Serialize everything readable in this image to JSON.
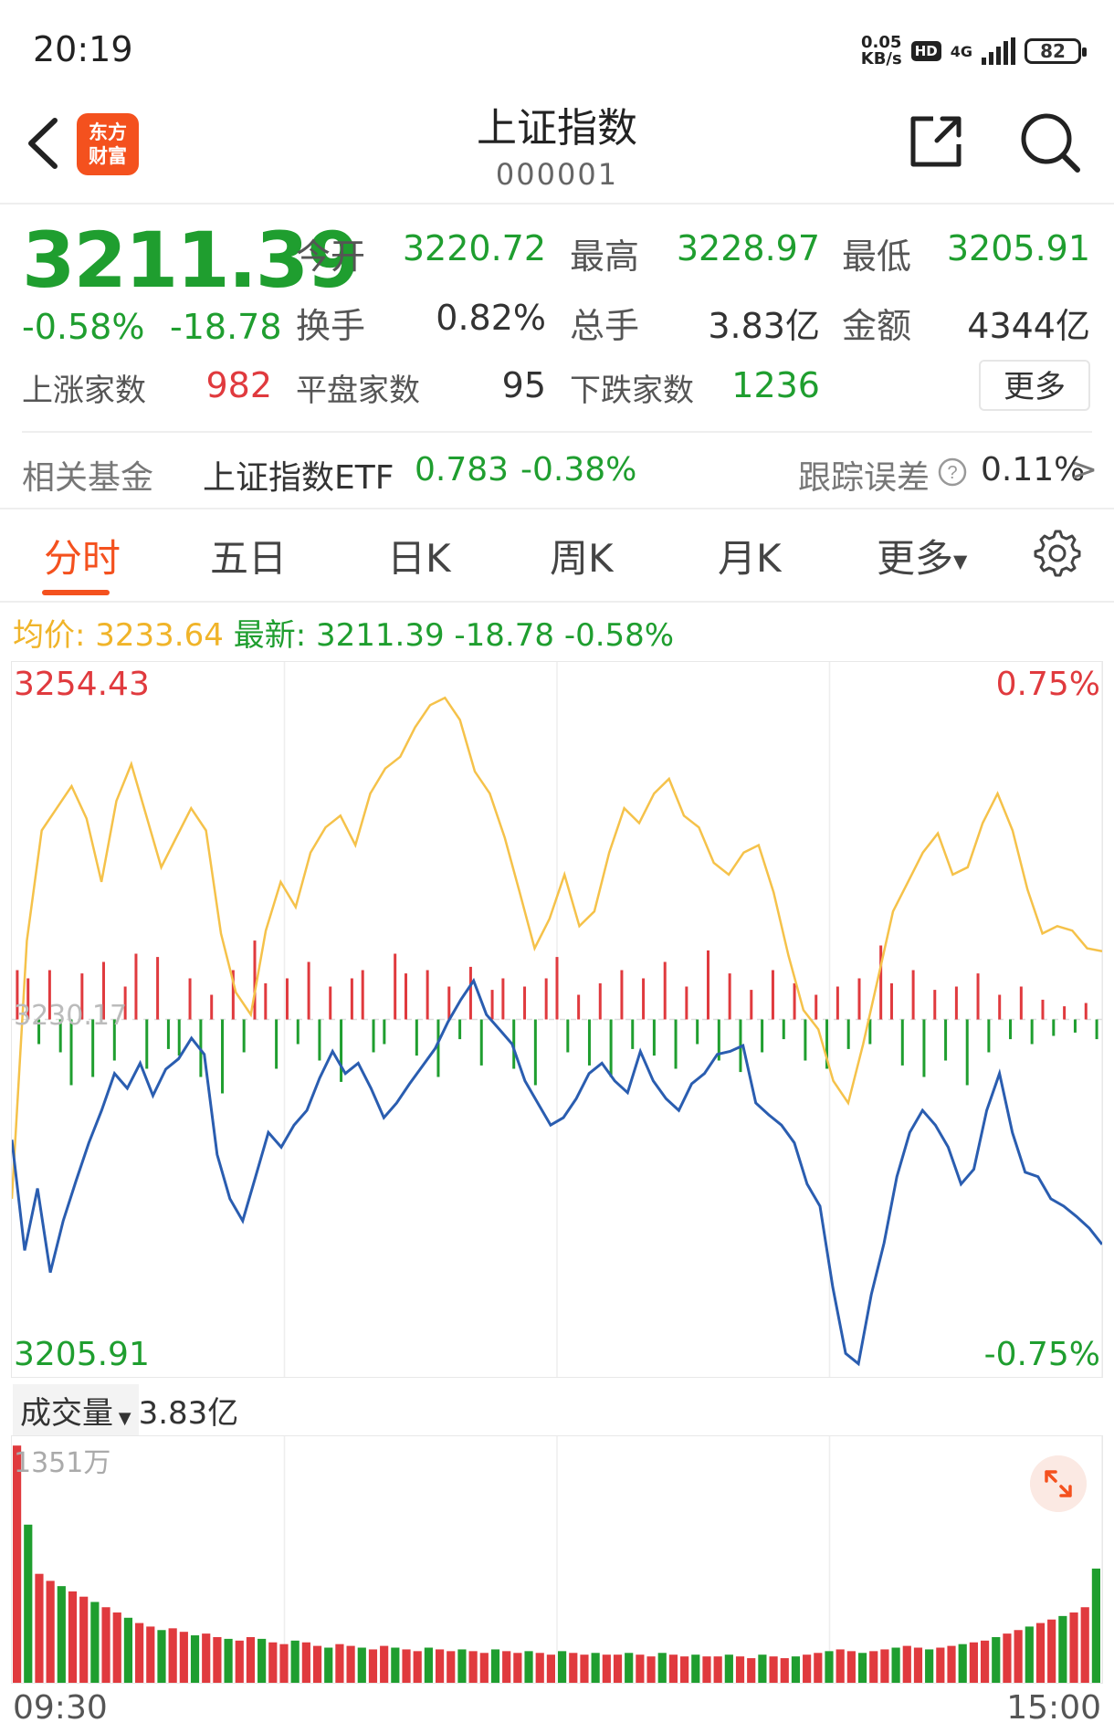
{
  "status_bar": {
    "time": "20:19",
    "net_speed_value": "0.05",
    "net_speed_unit": "KB/s",
    "hd": "HD",
    "network": "4G",
    "battery": "82"
  },
  "header": {
    "title": "上证指数",
    "code": "000001",
    "logo_line1": "东方",
    "logo_line2": "财富"
  },
  "quote": {
    "price": "3211.39",
    "change_pct": "-0.58%",
    "change": "-18.78",
    "open_label": "今开",
    "open": "3220.72",
    "high_label": "最高",
    "high": "3228.97",
    "low_label": "最低",
    "low": "3205.91",
    "turnover_label": "换手",
    "turnover": "0.82%",
    "volume_label": "总手",
    "volume": "3.83亿",
    "amount_label": "金额",
    "amount": "4344亿",
    "up_label": "上涨家数",
    "up": "982",
    "flat_label": "平盘家数",
    "flat": "95",
    "down_label": "下跌家数",
    "down": "1236",
    "more": "更多"
  },
  "fund": {
    "label": "相关基金",
    "name": "上证指数ETF",
    "price": "0.783",
    "change": "-0.38%",
    "tracking_label": "跟踪误差",
    "tracking": "0.11%",
    "arrow": ">"
  },
  "tabs": [
    "分时",
    "五日",
    "日K",
    "周K",
    "月K",
    "更多"
  ],
  "avg_row": {
    "avg_label": "均价:",
    "avg": "3233.64",
    "latest_label": "最新:",
    "latest": "3211.39",
    "change": "-18.78",
    "change_pct": "-0.58%"
  },
  "chart_data": {
    "type": "line",
    "y_top": "3254.43",
    "y_bottom": "3205.91",
    "y_mid": "3230.17",
    "pct_top": "0.75%",
    "pct_bottom": "-0.75%",
    "ylim": [
      3205.91,
      3254.43
    ],
    "x_start": "09:30",
    "x_end": "15:00",
    "price_series": [
      3222.0,
      3214.5,
      3218.7,
      3213.0,
      3216.5,
      3219.2,
      3221.8,
      3224.0,
      3226.5,
      3225.5,
      3227.2,
      3225.0,
      3226.8,
      3227.5,
      3228.9,
      3227.8,
      3221.0,
      3218.0,
      3216.5,
      3219.5,
      3222.5,
      3221.5,
      3223.0,
      3224.0,
      3226.2,
      3228.0,
      3226.5,
      3227.2,
      3225.5,
      3223.5,
      3224.5,
      3225.8,
      3227.0,
      3228.2,
      3230.0,
      3231.5,
      3232.8,
      3230.5,
      3229.5,
      3228.5,
      3226.0,
      3224.5,
      3223.0,
      3223.5,
      3224.8,
      3226.5,
      3227.2,
      3226.0,
      3225.2,
      3228.0,
      3226.0,
      3224.8,
      3224.0,
      3225.8,
      3226.5,
      3227.8,
      3228.0,
      3228.4,
      3224.5,
      3223.7,
      3223.0,
      3221.8,
      3219.0,
      3217.5,
      3212.0,
      3207.5,
      3206.8,
      3211.5,
      3215.0,
      3219.5,
      3222.5,
      3224.0,
      3223.0,
      3221.5,
      3219.0,
      3220.0,
      3224.0,
      3226.5,
      3222.5,
      3219.8,
      3219.5,
      3218.0,
      3217.5,
      3216.8,
      3216.0,
      3214.9
    ],
    "avg_series": [
      3218.0,
      3235.5,
      3243.0,
      3244.5,
      3246.0,
      3243.8,
      3239.5,
      3245.0,
      3247.5,
      3244.0,
      3240.5,
      3242.5,
      3244.5,
      3243.0,
      3236.0,
      3232.0,
      3230.5,
      3236.2,
      3239.5,
      3237.8,
      3241.5,
      3243.2,
      3244.0,
      3242.0,
      3245.5,
      3247.2,
      3248.0,
      3250.0,
      3251.5,
      3252.0,
      3250.5,
      3247.0,
      3245.5,
      3242.5,
      3238.8,
      3235.0,
      3237.0,
      3240.0,
      3236.5,
      3237.5,
      3241.5,
      3244.5,
      3243.5,
      3245.5,
      3246.5,
      3244.0,
      3243.2,
      3240.8,
      3240.0,
      3241.5,
      3242.0,
      3238.8,
      3234.5,
      3230.8,
      3229.5,
      3226.0,
      3224.5,
      3228.5,
      3233.0,
      3237.5,
      3239.5,
      3241.5,
      3242.8,
      3240.0,
      3240.5,
      3243.5,
      3245.5,
      3243.0,
      3239.0,
      3236.0,
      3236.5,
      3236.2,
      3235.0,
      3234.8
    ],
    "net_series": [
      3.0,
      2.5,
      -1.5,
      3.0,
      -2.0,
      -4.0,
      2.8,
      -3.5,
      3.5,
      -2.5,
      2.0,
      4.0,
      -3.0,
      3.8,
      -1.8,
      -2.2,
      2.5,
      -3.5,
      1.5,
      -4.5,
      3.0,
      -2.0,
      4.8,
      2.2,
      -3.0,
      2.5,
      -1.5,
      3.5,
      -2.5,
      2.0,
      -3.8,
      2.5,
      3.0,
      -2.0,
      -1.5,
      4.0,
      2.8,
      -2.2,
      3.0,
      -3.5,
      2.0,
      -1.2,
      3.2,
      -2.8,
      1.8,
      2.5,
      -3.0,
      2.0,
      -4.0,
      2.5,
      3.8,
      -2.0,
      1.5,
      -2.8,
      2.2,
      -3.5,
      3.0,
      -1.8,
      2.5,
      -2.2,
      3.5,
      -3.0,
      2.0,
      -1.5,
      4.2,
      -2.5,
      2.8,
      -3.2,
      1.8,
      -2.0,
      3.0,
      -1.2,
      2.2,
      -2.5,
      1.5,
      -3.0,
      2.0,
      -1.8,
      2.5,
      -1.5,
      4.5,
      2.2,
      -2.8,
      3.0,
      -3.5,
      1.8,
      -2.5,
      2.0,
      -4.0,
      2.8,
      -2.0,
      1.5,
      -1.2,
      2.0,
      -1.5,
      1.2,
      -1.0,
      0.8,
      -0.8,
      1.0,
      -1.2
    ],
    "volume_label": "成交量",
    "volume_value": "3.83亿",
    "volume_max_label": "1351万",
    "volume_series": [
      13.5,
      9.0,
      6.2,
      5.8,
      5.5,
      5.2,
      4.9,
      4.6,
      4.3,
      4.0,
      3.7,
      3.4,
      3.2,
      3.0,
      3.1,
      2.9,
      2.7,
      2.8,
      2.6,
      2.5,
      2.4,
      2.6,
      2.5,
      2.3,
      2.2,
      2.4,
      2.3,
      2.1,
      2.0,
      2.2,
      2.1,
      2.0,
      1.9,
      2.1,
      2.0,
      1.9,
      1.8,
      2.0,
      1.9,
      1.8,
      1.9,
      1.8,
      1.7,
      1.9,
      1.8,
      1.7,
      1.8,
      1.7,
      1.6,
      1.8,
      1.7,
      1.6,
      1.7,
      1.6,
      1.6,
      1.7,
      1.6,
      1.5,
      1.7,
      1.6,
      1.5,
      1.6,
      1.5,
      1.5,
      1.6,
      1.5,
      1.4,
      1.6,
      1.5,
      1.4,
      1.5,
      1.6,
      1.7,
      1.8,
      1.9,
      1.8,
      1.7,
      1.8,
      1.9,
      2.0,
      2.1,
      2.0,
      1.9,
      2.0,
      2.1,
      2.2,
      2.3,
      2.4,
      2.6,
      2.8,
      3.0,
      3.2,
      3.4,
      3.6,
      3.8,
      4.0,
      4.3,
      6.5
    ],
    "colors": {
      "price_line": "#2a5db0",
      "avg_line": "#f5c24a",
      "up": "#e03a3e",
      "down": "#1f9e2f"
    }
  }
}
